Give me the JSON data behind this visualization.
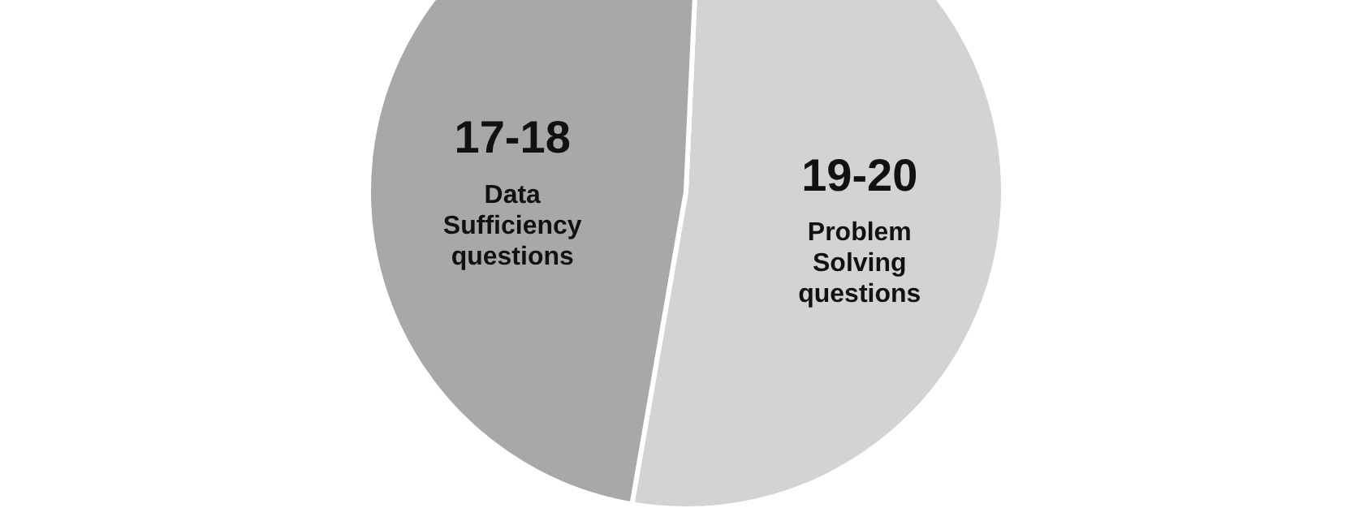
{
  "chart_data": {
    "type": "pie",
    "categories": [
      "Problem Solving questions",
      "Data Sufficiency questions"
    ],
    "values": [
      52,
      48
    ],
    "colors": [
      "#d3d3d3",
      "#a8a8a8"
    ],
    "value_labels": [
      "19-20",
      "17-18"
    ]
  }
}
